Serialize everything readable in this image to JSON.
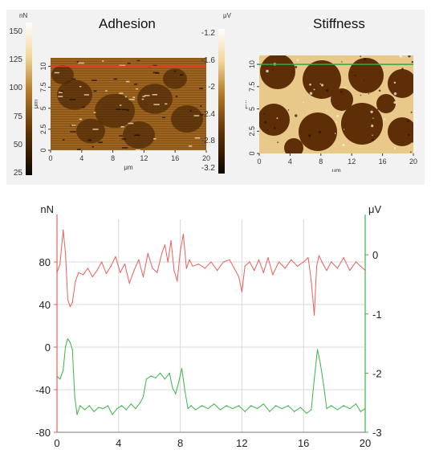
{
  "chart_data": [
    {
      "type": "heatmap",
      "title": "Adhesion",
      "colorbar": {
        "unit": "nN",
        "ticks": [
          "150",
          "125",
          "100",
          "75",
          "50",
          "25"
        ]
      },
      "xlabel": "μm",
      "ylabel": "μm",
      "xticks": [
        "0",
        "4",
        "8",
        "12",
        "16",
        "20"
      ],
      "yticks": [
        "0",
        "2.5",
        "5",
        "7.5",
        "10"
      ],
      "xlim": [
        0,
        20
      ],
      "ylim": [
        0,
        11
      ],
      "colormap": [
        "#0c0500",
        "#5e3206",
        "#b37a2a",
        "#f2d79c",
        "#ffffff"
      ],
      "line_profile_y": 10,
      "line_color": "#e8322f"
    },
    {
      "type": "heatmap",
      "title": "Stiffness",
      "colorbar": {
        "unit": "μV",
        "ticks": [
          "-1.2",
          "-1.6",
          "-2",
          "-2.4",
          "-2.8",
          "-3.2"
        ]
      },
      "xlabel": "μm",
      "ylabel": "μm",
      "xticks": [
        "0",
        "4",
        "8",
        "12",
        "16",
        "20"
      ],
      "yticks": [
        "0",
        "2.5",
        "5",
        "7.5",
        "10"
      ],
      "xlim": [
        0,
        20
      ],
      "ylim": [
        0,
        11
      ],
      "colormap": [
        "#0c0500",
        "#5e3206",
        "#b37a2a",
        "#f2d79c",
        "#ffffff"
      ],
      "line_profile_y": 10,
      "line_color": "#2fa84a"
    },
    {
      "type": "line",
      "xlim": [
        0,
        20
      ],
      "xticks": [
        "0",
        "4",
        "8",
        "12",
        "16",
        "20"
      ],
      "left_axis": {
        "unit": "nN",
        "ylim": [
          -80,
          120
        ],
        "ticks": [
          "80",
          "40",
          "0",
          "-40",
          "-80"
        ],
        "tick_values": [
          80,
          40,
          0,
          -40,
          -80
        ],
        "color": "#e8605c"
      },
      "right_axis": {
        "unit": "μV",
        "ylim": [
          -3,
          0.6
        ],
        "ticks": [
          "0",
          "-1",
          "-2",
          "-3"
        ],
        "tick_values": [
          0,
          -1,
          -2,
          -3
        ],
        "color": "#3fb24a"
      },
      "grid": true,
      "series": [
        {
          "axis": "left",
          "color": "#e8605c",
          "x": [
            0,
            0.2,
            0.4,
            0.55,
            0.7,
            0.85,
            1.0,
            1.2,
            1.4,
            1.7,
            2.0,
            2.3,
            2.6,
            2.9,
            3.2,
            3.5,
            3.8,
            4.1,
            4.4,
            4.7,
            5.0,
            5.3,
            5.6,
            5.9,
            6.2,
            6.5,
            6.8,
            7.0,
            7.2,
            7.4,
            7.6,
            7.8,
            8.0,
            8.2,
            8.4,
            8.6,
            8.8,
            9.2,
            9.6,
            10.0,
            10.4,
            10.8,
            11.2,
            11.5,
            11.8,
            12.0,
            12.2,
            12.5,
            12.8,
            13.1,
            13.4,
            13.7,
            14.0,
            14.4,
            14.8,
            15.2,
            15.6,
            16.0,
            16.3,
            16.5,
            16.7,
            16.85,
            17.0,
            17.2,
            17.5,
            17.8,
            18.2,
            18.6,
            19.0,
            19.4,
            19.7,
            20.0
          ],
          "y": [
            70,
            78,
            110,
            88,
            45,
            38,
            42,
            62,
            70,
            68,
            74,
            66,
            72,
            80,
            69,
            76,
            85,
            70,
            78,
            60,
            72,
            82,
            66,
            88,
            74,
            70,
            88,
            96,
            80,
            100,
            72,
            62,
            90,
            106,
            74,
            82,
            76,
            78,
            74,
            80,
            72,
            80,
            82,
            74,
            66,
            52,
            76,
            80,
            72,
            82,
            70,
            84,
            68,
            80,
            74,
            82,
            76,
            80,
            84,
            62,
            30,
            76,
            86,
            80,
            72,
            80,
            74,
            84,
            72,
            80,
            76,
            72
          ]
        },
        {
          "axis": "right",
          "color": "#3fb24a",
          "x": [
            0,
            0.2,
            0.4,
            0.55,
            0.7,
            0.85,
            1.0,
            1.15,
            1.3,
            1.5,
            1.8,
            2.1,
            2.4,
            2.7,
            3.0,
            3.3,
            3.6,
            3.9,
            4.2,
            4.5,
            4.8,
            5.1,
            5.4,
            5.6,
            5.8,
            6.1,
            6.4,
            6.7,
            7.0,
            7.3,
            7.5,
            7.7,
            7.9,
            8.1,
            8.3,
            8.5,
            8.7,
            9.0,
            9.4,
            9.8,
            10.2,
            10.6,
            11.0,
            11.4,
            11.8,
            12.2,
            12.6,
            13.0,
            13.4,
            13.8,
            14.2,
            14.6,
            15.0,
            15.4,
            15.8,
            16.2,
            16.5,
            16.7,
            16.9,
            17.1,
            17.3,
            17.5,
            17.8,
            18.2,
            18.6,
            19.0,
            19.4,
            19.7,
            20.0
          ],
          "y": [
            -2.05,
            -2.1,
            -1.95,
            -1.55,
            -1.42,
            -1.48,
            -1.6,
            -2.4,
            -2.7,
            -2.55,
            -2.62,
            -2.55,
            -2.65,
            -2.58,
            -2.6,
            -2.55,
            -2.7,
            -2.6,
            -2.55,
            -2.62,
            -2.52,
            -2.6,
            -2.5,
            -2.4,
            -2.1,
            -2.05,
            -2.08,
            -2.0,
            -2.1,
            -2.0,
            -2.25,
            -2.35,
            -2.15,
            -1.92,
            -2.3,
            -2.6,
            -2.55,
            -2.62,
            -2.55,
            -2.6,
            -2.52,
            -2.62,
            -2.55,
            -2.6,
            -2.55,
            -2.65,
            -2.55,
            -2.6,
            -2.52,
            -2.65,
            -2.55,
            -2.6,
            -2.55,
            -2.65,
            -2.58,
            -2.68,
            -2.62,
            -2.1,
            -1.6,
            -1.85,
            -2.2,
            -2.6,
            -2.55,
            -2.62,
            -2.55,
            -2.6,
            -2.52,
            -2.65,
            -2.6
          ]
        }
      ]
    }
  ]
}
